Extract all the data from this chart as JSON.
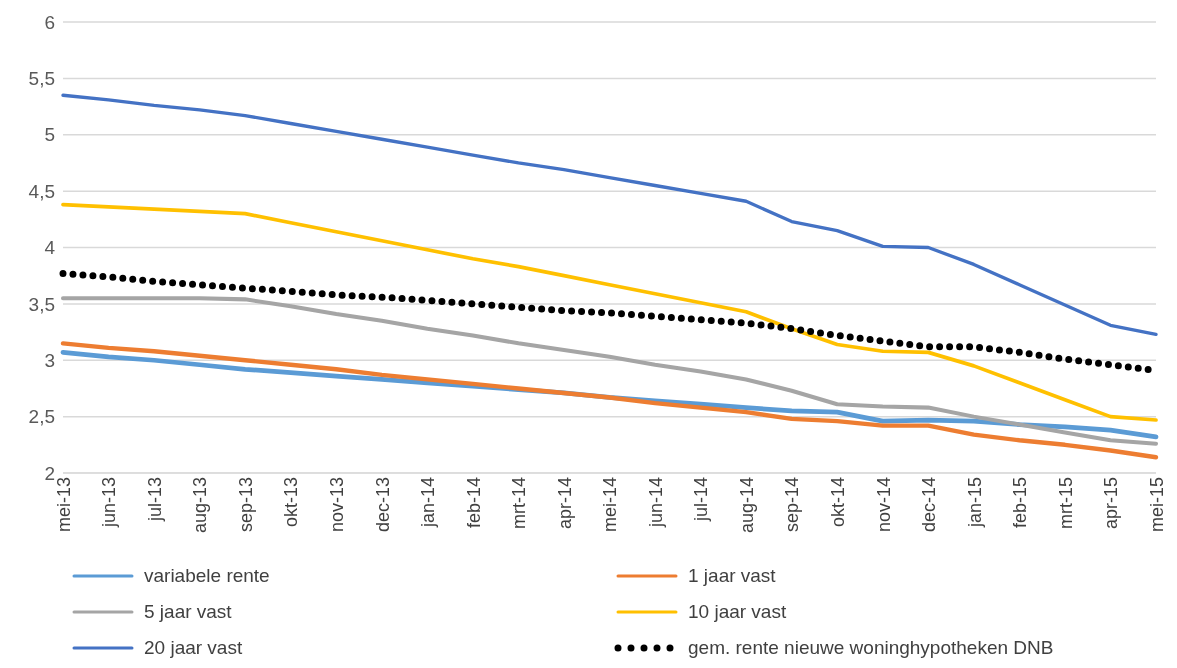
{
  "chart_data": {
    "type": "line",
    "categories": [
      "mei-13",
      "jun-13",
      "jul-13",
      "aug-13",
      "sep-13",
      "okt-13",
      "nov-13",
      "dec-13",
      "jan-14",
      "feb-14",
      "mrt-14",
      "apr-14",
      "mei-14",
      "jun-14",
      "jul-14",
      "aug-14",
      "sep-14",
      "okt-14",
      "nov-14",
      "dec-14",
      "jan-15",
      "feb-15",
      "mrt-15",
      "apr-15",
      "mei-15"
    ],
    "series": [
      {
        "name": "variabele rente",
        "color": "#5b9bd5",
        "values": [
          3.07,
          3.03,
          3.0,
          2.96,
          2.92,
          2.89,
          2.86,
          2.83,
          2.8,
          2.77,
          2.74,
          2.71,
          2.67,
          2.64,
          2.61,
          2.58,
          2.55,
          2.54,
          2.46,
          2.47,
          2.46,
          2.43,
          2.41,
          2.38,
          2.32
        ]
      },
      {
        "name": "1 jaar vast",
        "color": "#ed7d31",
        "values": [
          3.15,
          3.11,
          3.08,
          3.04,
          3.0,
          2.96,
          2.92,
          2.87,
          2.83,
          2.79,
          2.75,
          2.71,
          2.67,
          2.62,
          2.58,
          2.54,
          2.48,
          2.46,
          2.42,
          2.42,
          2.34,
          2.29,
          2.25,
          2.2,
          2.14
        ]
      },
      {
        "name": "5 jaar vast",
        "color": "#a5a5a5",
        "values": [
          3.55,
          3.55,
          3.55,
          3.55,
          3.54,
          3.48,
          3.41,
          3.35,
          3.28,
          3.22,
          3.15,
          3.09,
          3.03,
          2.96,
          2.9,
          2.83,
          2.73,
          2.61,
          2.59,
          2.58,
          2.5,
          2.43,
          2.36,
          2.29,
          2.26
        ]
      },
      {
        "name": "10 jaar vast",
        "color": "#ffc000",
        "values": [
          4.38,
          4.36,
          4.34,
          4.32,
          4.3,
          4.22,
          4.14,
          4.06,
          3.98,
          3.9,
          3.83,
          3.75,
          3.67,
          3.59,
          3.51,
          3.43,
          3.28,
          3.14,
          3.08,
          3.07,
          2.95,
          2.8,
          2.65,
          2.5,
          2.47
        ]
      },
      {
        "name": "20 jaar vast",
        "color": "#4472c4",
        "values": [
          5.35,
          5.31,
          5.26,
          5.22,
          5.17,
          5.1,
          5.03,
          4.96,
          4.89,
          4.82,
          4.75,
          4.69,
          4.62,
          4.55,
          4.48,
          4.41,
          4.23,
          4.15,
          4.01,
          4.0,
          3.85,
          3.67,
          3.49,
          3.31,
          3.23
        ]
      },
      {
        "name": "gem. rente nieuwe woninghypotheken DNB",
        "color": "#000000",
        "line_style": "dotted",
        "values": [
          3.77,
          3.74,
          3.7,
          3.67,
          3.64,
          3.61,
          3.58,
          3.56,
          3.53,
          3.5,
          3.47,
          3.44,
          3.42,
          3.39,
          3.36,
          3.33,
          3.28,
          3.22,
          3.17,
          3.12,
          3.12,
          3.07,
          3.01,
          2.96,
          2.91
        ]
      }
    ],
    "ylim": [
      2,
      6
    ],
    "yticks": [
      2,
      {
        "value": 2.5,
        "label": "2,5"
      },
      3,
      {
        "value": 3.5,
        "label": "3,5"
      },
      4,
      {
        "value": 4.5,
        "label": "4,5"
      },
      5,
      {
        "value": 5.5,
        "label": "5,5"
      },
      6
    ],
    "grid": "y",
    "legend": "bottom",
    "marker": "none",
    "line_style": "solid"
  }
}
